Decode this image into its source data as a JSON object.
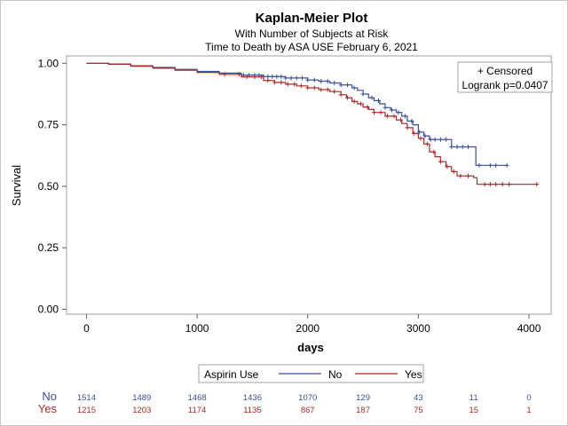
{
  "chart_data": {
    "type": "line",
    "title": "Kaplan-Meier Plot",
    "subtitle1": "With Number of Subjects at Risk",
    "subtitle2": "Time to Death by ASA USE   February 6, 2021",
    "xlabel": "days",
    "ylabel": "Survival",
    "xlim": [
      -180,
      4200
    ],
    "ylim": [
      -0.02,
      1.03
    ],
    "xticks": [
      0,
      1000,
      2000,
      3000,
      4000
    ],
    "xtick_labels": [
      "0",
      "1000",
      "2000",
      "3000",
      "4000"
    ],
    "yticks": [
      0,
      0.25,
      0.5,
      0.75,
      1.0
    ],
    "ytick_labels": [
      "0.00",
      "0.25",
      "0.50",
      "0.75",
      "1.00"
    ],
    "grid": false,
    "inset_legend": {
      "position": "top-right",
      "line1": "+ Censored",
      "line2": "Logrank p=0.0407"
    },
    "legend": {
      "position": "bottom",
      "title": "Aspirin Use"
    },
    "series": [
      {
        "name": "No",
        "color": "#3b4f96",
        "points": [
          [
            0,
            1.0
          ],
          [
            200,
            0.997
          ],
          [
            400,
            0.99
          ],
          [
            600,
            0.983
          ],
          [
            800,
            0.975
          ],
          [
            1000,
            0.967
          ],
          [
            1200,
            0.96
          ],
          [
            1400,
            0.952
          ],
          [
            1600,
            0.946
          ],
          [
            1800,
            0.94
          ],
          [
            2000,
            0.932
          ],
          [
            2100,
            0.927
          ],
          [
            2200,
            0.92
          ],
          [
            2300,
            0.912
          ],
          [
            2400,
            0.9
          ],
          [
            2450,
            0.89
          ],
          [
            2500,
            0.875
          ],
          [
            2550,
            0.86
          ],
          [
            2600,
            0.848
          ],
          [
            2650,
            0.835
          ],
          [
            2700,
            0.82
          ],
          [
            2750,
            0.81
          ],
          [
            2800,
            0.8
          ],
          [
            2850,
            0.785
          ],
          [
            2900,
            0.765
          ],
          [
            2950,
            0.75
          ],
          [
            3000,
            0.72
          ],
          [
            3050,
            0.705
          ],
          [
            3100,
            0.69
          ],
          [
            3300,
            0.69
          ],
          [
            3300,
            0.66
          ],
          [
            3520,
            0.66
          ],
          [
            3520,
            0.585
          ],
          [
            3800,
            0.585
          ]
        ],
        "censored": [
          1420,
          1470,
          1520,
          1560,
          1600,
          1640,
          1680,
          1720,
          1760,
          1800,
          1850,
          1900,
          1950,
          2000,
          2060,
          2120,
          2180,
          2240,
          2300,
          2360,
          2420,
          2500,
          2580,
          2640,
          2700,
          2760,
          2820,
          2880,
          2940,
          3010,
          3060,
          3110,
          3150,
          3200,
          3250,
          3300,
          3350,
          3400,
          3450,
          3550,
          3650,
          3700,
          3800
        ]
      },
      {
        "name": "Yes",
        "color": "#a52a2a",
        "points": [
          [
            0,
            1.0
          ],
          [
            200,
            0.996
          ],
          [
            400,
            0.988
          ],
          [
            600,
            0.98
          ],
          [
            800,
            0.972
          ],
          [
            1000,
            0.963
          ],
          [
            1200,
            0.955
          ],
          [
            1400,
            0.945
          ],
          [
            1600,
            0.93
          ],
          [
            1700,
            0.922
          ],
          [
            1800,
            0.915
          ],
          [
            1900,
            0.908
          ],
          [
            2000,
            0.9
          ],
          [
            2100,
            0.893
          ],
          [
            2200,
            0.885
          ],
          [
            2300,
            0.872
          ],
          [
            2350,
            0.86
          ],
          [
            2400,
            0.845
          ],
          [
            2450,
            0.835
          ],
          [
            2500,
            0.822
          ],
          [
            2550,
            0.812
          ],
          [
            2600,
            0.8
          ],
          [
            2700,
            0.785
          ],
          [
            2800,
            0.77
          ],
          [
            2850,
            0.755
          ],
          [
            2900,
            0.738
          ],
          [
            2950,
            0.715
          ],
          [
            3000,
            0.695
          ],
          [
            3050,
            0.672
          ],
          [
            3100,
            0.64
          ],
          [
            3150,
            0.62
          ],
          [
            3200,
            0.6
          ],
          [
            3250,
            0.58
          ],
          [
            3300,
            0.56
          ],
          [
            3350,
            0.542
          ],
          [
            3430,
            0.542
          ],
          [
            3500,
            0.535
          ],
          [
            3530,
            0.508
          ],
          [
            4070,
            0.508
          ]
        ],
        "censored": [
          1250,
          1380,
          1450,
          1520,
          1580,
          1640,
          1700,
          1760,
          1820,
          1880,
          1940,
          2000,
          2060,
          2120,
          2180,
          2240,
          2300,
          2360,
          2420,
          2480,
          2540,
          2600,
          2660,
          2720,
          2780,
          2840,
          2900,
          2960,
          3020,
          3080,
          3140,
          3200,
          3260,
          3320,
          3380,
          3450,
          3600,
          3650,
          3700,
          3760,
          3820,
          4070
        ]
      }
    ],
    "at_risk": {
      "x": [
        0,
        500,
        1000,
        1500,
        2000,
        2500,
        3000,
        3500,
        4000
      ],
      "rows": [
        {
          "label": "No",
          "color": "#3b4f96",
          "values": [
            "1514",
            "1489",
            "1468",
            "1436",
            "1070",
            "129",
            "43",
            "11",
            "0"
          ]
        },
        {
          "label": "Yes",
          "color": "#a52a2a",
          "values": [
            "1215",
            "1203",
            "1174",
            "1135",
            "867",
            "187",
            "75",
            "15",
            "1"
          ]
        }
      ]
    }
  }
}
